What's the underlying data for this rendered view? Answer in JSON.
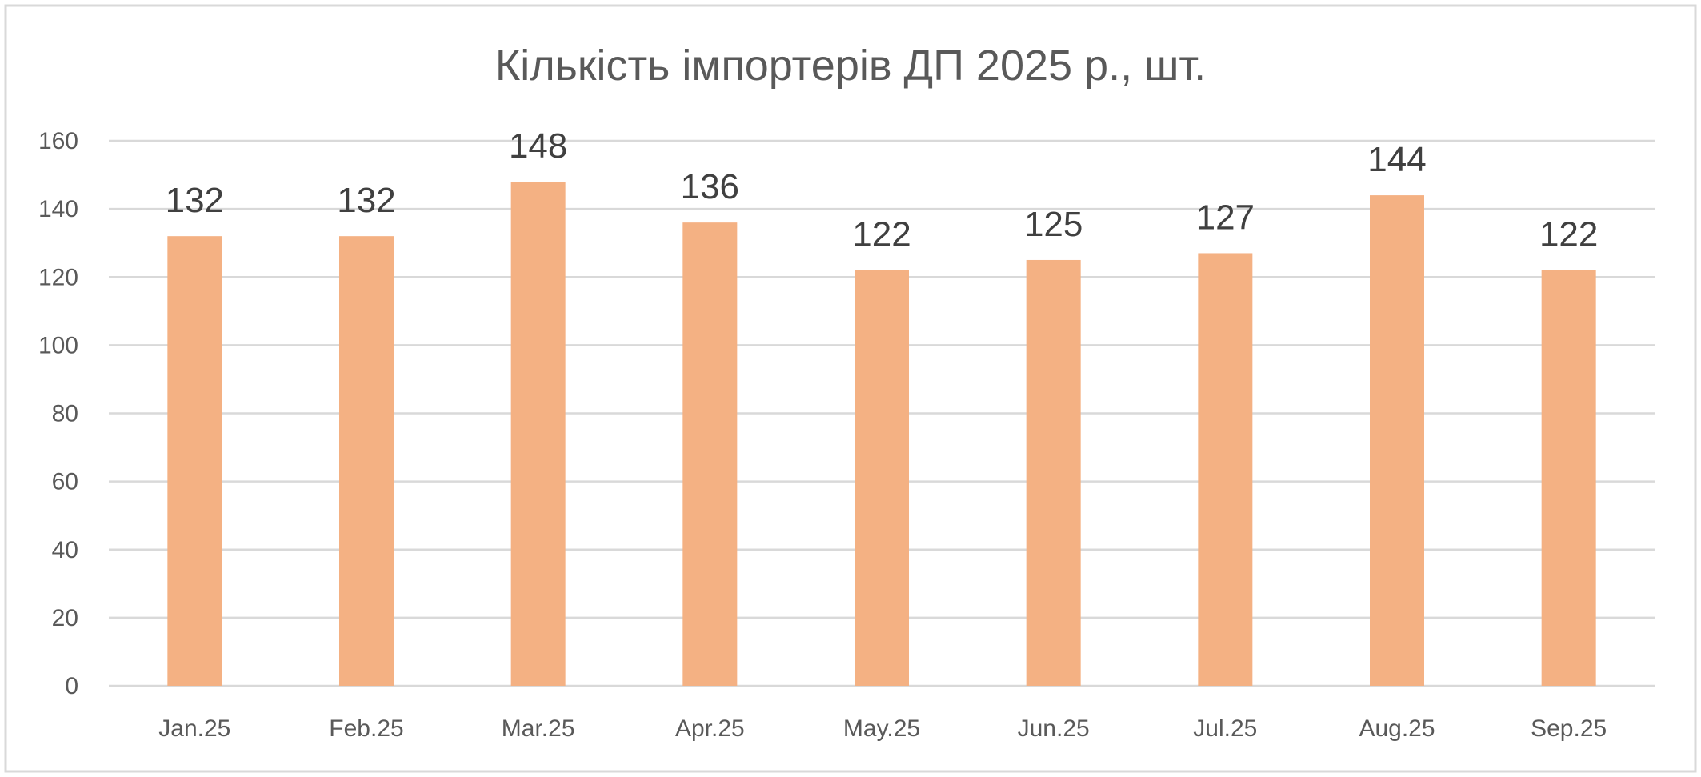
{
  "chart_data": {
    "type": "bar",
    "title": "Кількість імпортерів ДП 2025 р., шт.",
    "xlabel": "",
    "ylabel": "",
    "categories": [
      "Jan.25",
      "Feb.25",
      "Mar.25",
      "Apr.25",
      "May.25",
      "Jun.25",
      "Jul.25",
      "Aug.25",
      "Sep.25"
    ],
    "values": [
      132,
      132,
      148,
      136,
      122,
      125,
      127,
      144,
      122
    ],
    "ylim": [
      0,
      160
    ],
    "yticks": [
      0,
      20,
      40,
      60,
      80,
      100,
      120,
      140,
      160
    ],
    "grid": true,
    "legend": "none",
    "data_labels": true,
    "bar_color": "#f4b183"
  }
}
